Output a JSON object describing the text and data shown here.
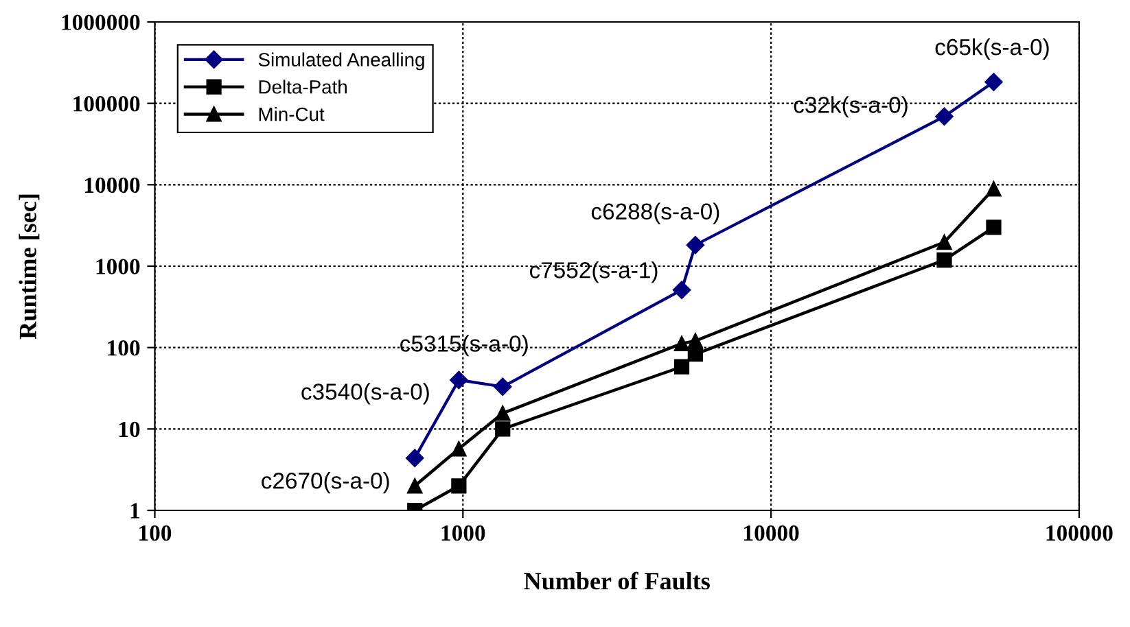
{
  "chart_data": {
    "type": "line",
    "xlabel": "Number of Faults",
    "ylabel": "Runtime [sec]",
    "log": "xy",
    "x": [
      698,
      970,
      1346,
      5130,
      5680,
      36500,
      52800
    ],
    "series": [
      {
        "name": "Simulated Anealling",
        "color": "#000080",
        "marker": "diamond",
        "values": [
          4.4,
          40,
          33,
          510,
          1820,
          69000,
          183000
        ]
      },
      {
        "name": "Delta-Path",
        "color": "#000000",
        "marker": "square",
        "values": [
          1,
          2,
          10,
          58,
          83,
          1190,
          3000
        ]
      },
      {
        "name": "Min-Cut",
        "color": "#000000",
        "marker": "triangle",
        "values": [
          2,
          5.7,
          15.6,
          112,
          121,
          1970,
          8900
        ]
      }
    ],
    "xlim": [
      100,
      100000
    ],
    "xticks": [
      100,
      1000,
      10000,
      100000
    ],
    "ylim": [
      1,
      1000000
    ],
    "yticks": [
      1,
      10,
      100,
      1000,
      10000,
      100000,
      1000000
    ],
    "grid": true,
    "legend": "top left",
    "line_style": "solid",
    "annotations": [
      {
        "text": "c2670(s-a-0)",
        "x": 698,
        "y": 4.4
      },
      {
        "text": "c3540(s-a-0)",
        "x": 970,
        "y": 40
      },
      {
        "text": "c5315(s-a-0)",
        "x": 1346,
        "y": 33
      },
      {
        "text": "c7552(s-a-1)",
        "x": 5130,
        "y": 510
      },
      {
        "text": "c6288(s-a-0)",
        "x": 5680,
        "y": 1820
      },
      {
        "text": "c32k(s-a-0)",
        "x": 36500,
        "y": 69000
      },
      {
        "text": "c65k(s-a-0)",
        "x": 52800,
        "y": 183000
      }
    ]
  }
}
